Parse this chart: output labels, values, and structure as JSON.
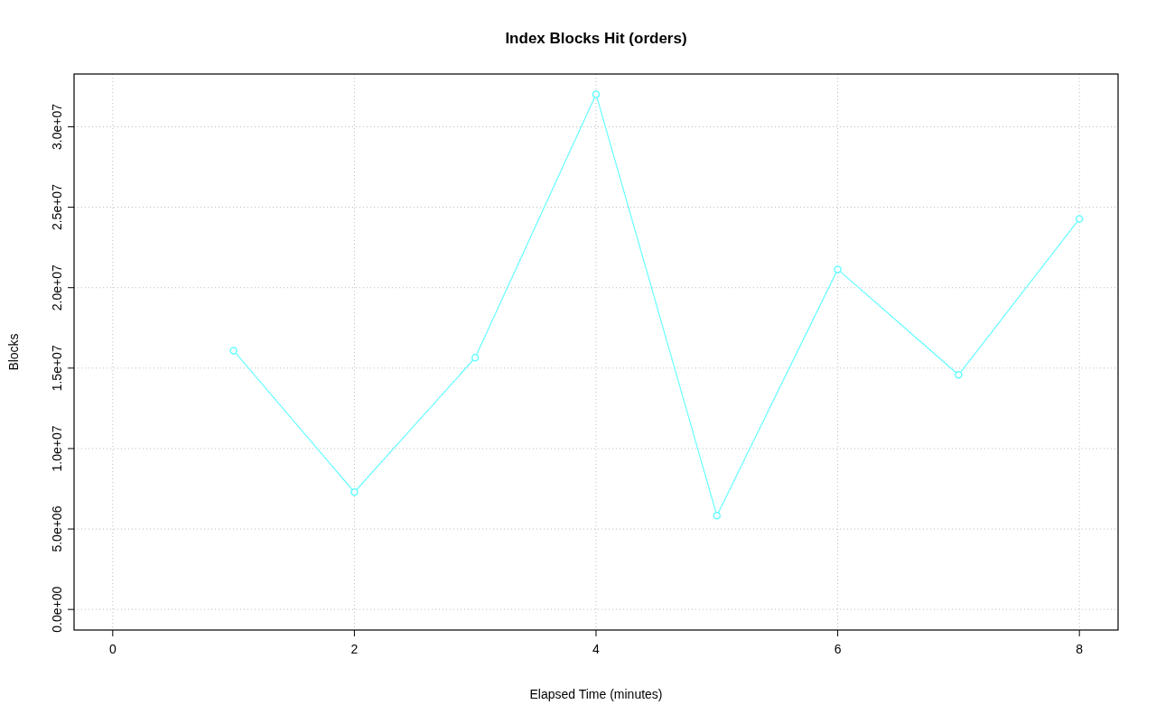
{
  "chart_data": {
    "type": "line",
    "title": "Index Blocks Hit (orders)",
    "xlabel": "Elapsed Time (minutes)",
    "ylabel": "Blocks",
    "x": [
      1,
      2,
      3,
      4,
      5,
      6,
      7,
      8
    ],
    "series": [
      {
        "color": "#66ffff",
        "values": [
          16090000,
          7290000,
          15650000,
          32020000,
          5830000,
          21140000,
          14580000,
          24280000
        ]
      }
    ],
    "xlim": [
      -0.32,
      8.32
    ],
    "xticks": [
      0,
      2,
      4,
      6,
      8
    ],
    "ylim": [
      -1280000,
      33280000
    ],
    "yticks": [
      {
        "value": 0,
        "label": "0.0e+00"
      },
      {
        "value": 5000000,
        "label": "5.0e+06"
      },
      {
        "value": 10000000,
        "label": "1.0e+07"
      },
      {
        "value": 15000000,
        "label": "1.5e+07"
      },
      {
        "value": 20000000,
        "label": "2.0e+07"
      },
      {
        "value": 25000000,
        "label": "2.5e+07"
      },
      {
        "value": 30000000,
        "label": "3.0e+07"
      }
    ],
    "grid": true,
    "marker": "circle",
    "line_style": "solid"
  }
}
